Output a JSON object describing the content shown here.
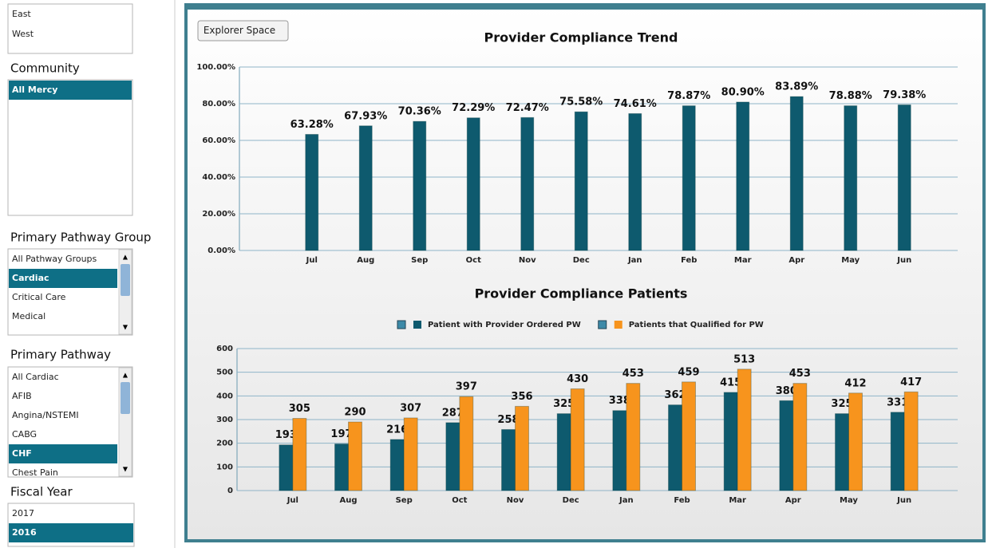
{
  "button": "Explorer Space",
  "sidebar": [
    {
      "items": [
        "East",
        "West"
      ]
    },
    {
      "label": "Community",
      "items": [
        "All Mercy"
      ],
      "selected": 0
    },
    {
      "label": "Primary Pathway Group",
      "items": [
        "All Pathway Groups",
        "Cardiac",
        "Critical Care",
        "Medical"
      ],
      "selected": 1
    },
    {
      "label": "Primary Pathway",
      "items": [
        "All Cardiac",
        "AFIB",
        "Angina/NSTEMI",
        "CABG",
        "CHF",
        "Chest Pain"
      ],
      "selected": 4
    },
    {
      "label": "Fiscal Year",
      "items": [
        "2017",
        "2016"
      ],
      "selected": 1
    }
  ],
  "chart_data": [
    {
      "type": "bar",
      "title": "Provider Compliance Trend",
      "categories": [
        "Jul",
        "Aug",
        "Sep",
        "Oct",
        "Nov",
        "Dec",
        "Jan",
        "Feb",
        "Mar",
        "Apr",
        "May",
        "Jun"
      ],
      "series": [
        {
          "color": "#0e5a6e",
          "values": [
            63.28,
            67.93,
            70.36,
            72.29,
            72.47,
            75.58,
            74.61,
            78.87,
            80.9,
            83.89,
            78.88,
            79.38
          ],
          "value_labels": [
            "63.28%",
            "67.93%",
            "70.36%",
            "72.29%",
            "72.47%",
            "75.58%",
            "74.61%",
            "78.87%",
            "80.90%",
            "83.89%",
            "78.88%",
            "79.38%"
          ]
        }
      ],
      "ylim": [
        0,
        100
      ],
      "yticks": [
        {
          "value": 0,
          "label": "0.00%"
        },
        {
          "value": 20,
          "label": "20.00%"
        },
        {
          "value": 40,
          "label": "40.00%"
        },
        {
          "value": 60,
          "label": "60.00%"
        },
        {
          "value": 80,
          "label": "80.00%"
        },
        {
          "value": 100,
          "label": "100.00%"
        }
      ],
      "grid": true
    },
    {
      "type": "bar",
      "title": "Provider Compliance Patients",
      "categories": [
        "Jul",
        "Aug",
        "Sep",
        "Oct",
        "Nov",
        "Dec",
        "Jan",
        "Feb",
        "Mar",
        "Apr",
        "May",
        "Jun"
      ],
      "series": [
        {
          "name": "Patient with Provider Ordered PW",
          "color": "#0e5a6e",
          "values": [
            193,
            197,
            216,
            287,
            258,
            325,
            338,
            362,
            415,
            380,
            325,
            331
          ]
        },
        {
          "name": "Patients that Qualified for PW",
          "color": "#f7941d",
          "values": [
            305,
            290,
            307,
            397,
            356,
            430,
            453,
            459,
            513,
            453,
            412,
            417
          ]
        }
      ],
      "ylim": [
        0,
        600
      ],
      "yticks": [
        0,
        100,
        200,
        300,
        400,
        500,
        600
      ],
      "grid": true,
      "legend": "top"
    }
  ]
}
